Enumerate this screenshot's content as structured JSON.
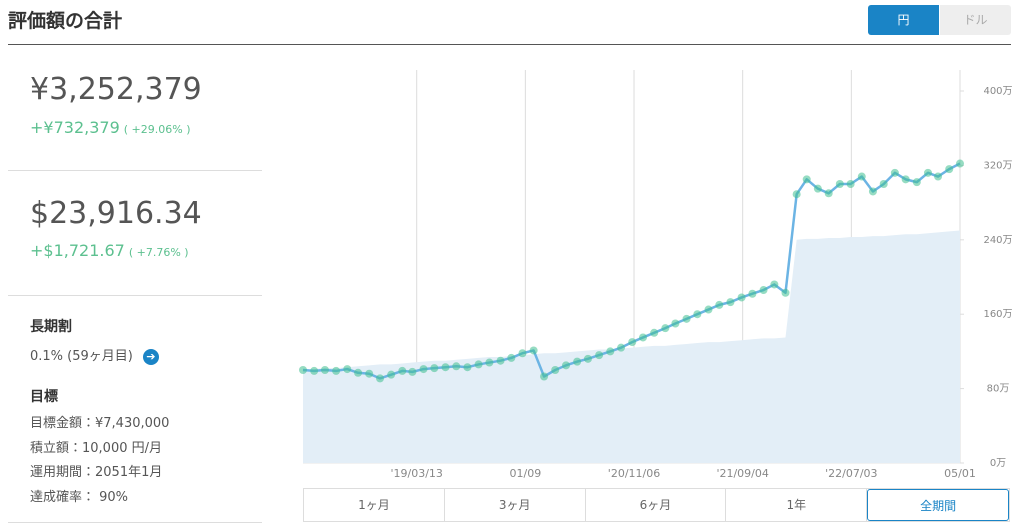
{
  "header": {
    "title": "評価額の合計",
    "currency_toggle": [
      "円",
      "ドル"
    ]
  },
  "summary": [
    {
      "value": "¥3,252,379",
      "change": "+¥732,379",
      "change_pct": "( +29.06% )"
    },
    {
      "value": "$23,916.34",
      "change": "+$1,721.67",
      "change_pct": "( +7.76% )"
    }
  ],
  "long_term": {
    "title": "長期割",
    "rate": "0.1% (59ヶ月目)"
  },
  "goal": {
    "title": "目標",
    "items": [
      "目標金額：¥7,430,000",
      "積立額：10,000 円/月",
      "運用期間：2051年1月",
      "達成確率： 90%"
    ]
  },
  "periods": [
    "1ヶ月",
    "3ヶ月",
    "6ヶ月",
    "1年",
    "全期間"
  ],
  "chart_data": {
    "type": "line",
    "x": [
      "2018-05",
      "2018-06",
      "2018-07",
      "2018-08",
      "2018-09",
      "2018-10",
      "2018-11",
      "2018-12",
      "2019-01",
      "2019-02",
      "2019-03",
      "2019-04",
      "2019-05",
      "2019-06",
      "2019-07",
      "2019-08",
      "2019-09",
      "2019-10",
      "2019-11",
      "2019-12",
      "2020-01",
      "2020-02",
      "2020-03",
      "2020-04",
      "2020-05",
      "2020-06",
      "2020-07",
      "2020-08",
      "2020-09",
      "2020-10",
      "2020-11",
      "2020-12",
      "2021-01",
      "2021-02",
      "2021-03",
      "2021-04",
      "2021-05",
      "2021-06",
      "2021-07",
      "2021-08",
      "2021-09",
      "2021-10",
      "2021-11",
      "2021-12",
      "2022-01",
      "2022-02",
      "2022-03",
      "2022-04",
      "2022-05",
      "2022-06",
      "2022-07",
      "2022-08",
      "2022-09",
      "2022-10",
      "2022-11",
      "2022-12",
      "2023-01",
      "2023-02",
      "2023-03",
      "2023-04",
      "2023-05"
    ],
    "series": [
      {
        "color": "#6cb4e4",
        "values": [
          100,
          99,
          100,
          99,
          101,
          97,
          96,
          91,
          95,
          99,
          98,
          101,
          102,
          103,
          104,
          103,
          106,
          108,
          110,
          113,
          118,
          121,
          93,
          100,
          105,
          109,
          112,
          116,
          120,
          124,
          130,
          135,
          140,
          145,
          150,
          155,
          160,
          165,
          170,
          173,
          178,
          182,
          186,
          192,
          183,
          289,
          305,
          295,
          290,
          300,
          300,
          308,
          292,
          300,
          312,
          305,
          302,
          312,
          308,
          316,
          322
        ]
      },
      {
        "color": "#e3eef7",
        "values": [
          100,
          101,
          102,
          102,
          103,
          104,
          105,
          106,
          106,
          107,
          108,
          109,
          110,
          110,
          111,
          112,
          113,
          114,
          114,
          115,
          116,
          117,
          118,
          118,
          119,
          120,
          121,
          122,
          122,
          123,
          124,
          125,
          126,
          126,
          127,
          128,
          129,
          130,
          130,
          131,
          132,
          133,
          134,
          134,
          135,
          240,
          241,
          241,
          242,
          242,
          243,
          243,
          244,
          244,
          245,
          246,
          246,
          247,
          248,
          249,
          250
        ]
      }
    ],
    "xlim": [
      "2018-05-01",
      "2023-05-01"
    ],
    "xticks": [
      {
        "value": "2019-03-13",
        "label": "'19/03/13"
      },
      {
        "value": "2020-01-09",
        "label": "01/09"
      },
      {
        "value": "2020-11-06",
        "label": "'20/11/06"
      },
      {
        "value": "2021-09-04",
        "label": "'21/09/04"
      },
      {
        "value": "2022-07-03",
        "label": "'22/07/03"
      },
      {
        "value": "2023-05-01",
        "label": "05/01"
      }
    ],
    "ylim": [
      0,
      420
    ],
    "yticks": [
      {
        "value": 0,
        "label": "0万"
      },
      {
        "value": 80,
        "label": "80万"
      },
      {
        "value": 160,
        "label": "160万"
      },
      {
        "value": 240,
        "label": "240万"
      },
      {
        "value": 320,
        "label": "320万"
      },
      {
        "value": 400,
        "label": "400万"
      }
    ],
    "marker_color": "#3fbf8f"
  }
}
